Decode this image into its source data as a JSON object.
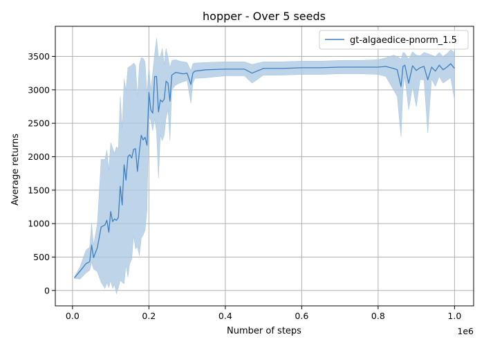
{
  "chart_data": {
    "type": "line",
    "title": "hopper - Over 5 seeds",
    "xlabel": "Number of steps",
    "ylabel": "Average returns",
    "x_offset_label": "1e6",
    "xlim": [
      -0.045,
      1.05
    ],
    "ylim": [
      -230,
      3950
    ],
    "xticks": [
      0.0,
      0.2,
      0.4,
      0.6,
      0.8,
      1.0
    ],
    "xtick_labels": [
      "0.0",
      "0.2",
      "0.4",
      "0.6",
      "0.8",
      "1.0"
    ],
    "yticks": [
      0,
      500,
      1000,
      1500,
      2000,
      2500,
      3000,
      3500
    ],
    "ytick_labels": [
      "0",
      "500",
      "1000",
      "1500",
      "2000",
      "2500",
      "3000",
      "3500"
    ],
    "grid": true,
    "legend_position": "top-right",
    "series": [
      {
        "name": "gt-algaedice-pnorm_1.5",
        "color": "#3c7ebf",
        "band_color": "#a8c6e0",
        "x": [
          0.005,
          0.02,
          0.035,
          0.045,
          0.05,
          0.055,
          0.065,
          0.075,
          0.085,
          0.09,
          0.095,
          0.1,
          0.105,
          0.11,
          0.115,
          0.12,
          0.125,
          0.13,
          0.135,
          0.14,
          0.145,
          0.15,
          0.155,
          0.16,
          0.165,
          0.17,
          0.175,
          0.18,
          0.185,
          0.19,
          0.195,
          0.2,
          0.205,
          0.21,
          0.215,
          0.22,
          0.225,
          0.23,
          0.235,
          0.24,
          0.245,
          0.25,
          0.255,
          0.26,
          0.27,
          0.28,
          0.29,
          0.3,
          0.31,
          0.315,
          0.32,
          0.35,
          0.4,
          0.45,
          0.47,
          0.5,
          0.55,
          0.6,
          0.65,
          0.7,
          0.75,
          0.8,
          0.82,
          0.84,
          0.85,
          0.86,
          0.865,
          0.87,
          0.88,
          0.89,
          0.9,
          0.91,
          0.92,
          0.93,
          0.94,
          0.95,
          0.96,
          0.97,
          0.98,
          0.99,
          1.0
        ],
        "y": [
          190,
          290,
          400,
          430,
          680,
          490,
          640,
          950,
          980,
          1050,
          870,
          1180,
          1030,
          1070,
          1050,
          1090,
          1560,
          1280,
          1880,
          1650,
          2000,
          2030,
          1980,
          2110,
          2120,
          1780,
          2080,
          2320,
          2250,
          2290,
          2170,
          2960,
          2700,
          2650,
          3200,
          3200,
          2670,
          2850,
          2820,
          2860,
          3130,
          3100,
          2830,
          3220,
          3260,
          3250,
          3240,
          3250,
          3080,
          3250,
          3280,
          3300,
          3310,
          3310,
          3250,
          3320,
          3320,
          3330,
          3330,
          3340,
          3340,
          3340,
          3350,
          3320,
          3300,
          3050,
          3350,
          3370,
          3100,
          3360,
          3290,
          3330,
          3350,
          3150,
          3340,
          3280,
          3370,
          3300,
          3340,
          3390,
          3320
        ],
        "lower": [
          180,
          170,
          260,
          300,
          430,
          320,
          280,
          120,
          30,
          120,
          40,
          150,
          30,
          90,
          -50,
          40,
          150,
          120,
          100,
          380,
          200,
          400,
          470,
          820,
          620,
          650,
          520,
          780,
          830,
          900,
          1200,
          2600,
          2540,
          2390,
          2560,
          2380,
          1680,
          2320,
          2240,
          2320,
          2580,
          2700,
          2240,
          3000,
          3070,
          3100,
          3120,
          3140,
          2800,
          3100,
          3170,
          3180,
          3210,
          3210,
          3100,
          3220,
          3220,
          3230,
          3230,
          3240,
          3240,
          3230,
          3200,
          3000,
          2900,
          2300,
          3000,
          3200,
          2700,
          3050,
          2750,
          3150,
          3150,
          2360,
          3160,
          3050,
          3200,
          3100,
          3140,
          3180,
          2850
        ],
        "upper": [
          200,
          360,
          600,
          650,
          1000,
          680,
          1000,
          1960,
          1960,
          2100,
          1800,
          2210,
          2130,
          2050,
          2150,
          2120,
          2900,
          2430,
          3160,
          3000,
          3330,
          3350,
          3370,
          3400,
          3370,
          2900,
          3380,
          3480,
          3470,
          3420,
          2950,
          3360,
          3000,
          3260,
          3540,
          3770,
          3500,
          3500,
          3620,
          3380,
          3620,
          3490,
          3330,
          3440,
          3450,
          3430,
          3420,
          3410,
          3290,
          3390,
          3400,
          3410,
          3420,
          3420,
          3380,
          3420,
          3420,
          3430,
          3430,
          3440,
          3440,
          3450,
          3480,
          3520,
          3500,
          3460,
          3560,
          3550,
          3460,
          3570,
          3520,
          3510,
          3560,
          3540,
          3520,
          3500,
          3560,
          3500,
          3540,
          3600,
          3560
        ]
      }
    ]
  }
}
